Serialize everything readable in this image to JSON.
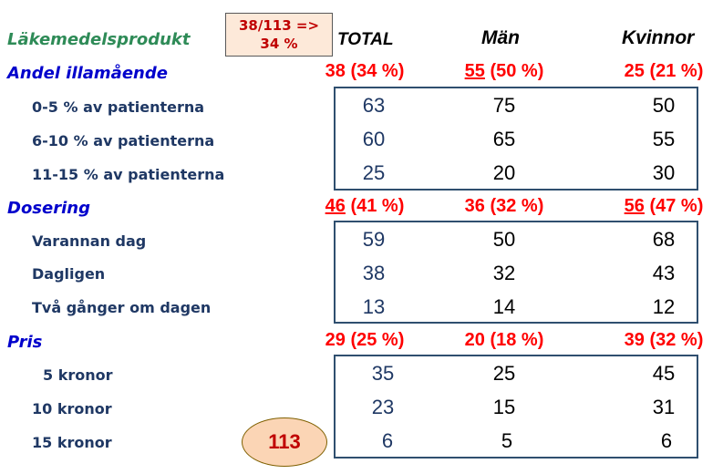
{
  "title": "Läkemedelsprodukt",
  "note": {
    "line1": "38/113 =>",
    "line2": "34 %"
  },
  "columns": {
    "total": "TOTAL",
    "men": "Män",
    "women": "Kvinnor"
  },
  "sections": [
    {
      "name": "Andel illamående",
      "summary": {
        "total": {
          "prefix": "",
          "underlined": "",
          "suffix": "38 (34 %)"
        },
        "men": {
          "prefix": "",
          "underlined": "55",
          "suffix": " (50 %)"
        },
        "women": {
          "prefix": "",
          "underlined": "",
          "suffix": "25 (21 %)"
        }
      },
      "rows": [
        {
          "label": "0-5 % av patienterna",
          "total": "63",
          "men": "75",
          "women": "50"
        },
        {
          "label": "6-10 % av patienterna",
          "total": "60",
          "men": "65",
          "women": "55"
        },
        {
          "label": "11-15 % av patienterna",
          "total": "25",
          "men": "20",
          "women": "30"
        }
      ]
    },
    {
      "name": "Dosering",
      "summary": {
        "total": {
          "prefix": "",
          "underlined": "46",
          "suffix": " (41 %)"
        },
        "men": {
          "prefix": "",
          "underlined": "",
          "suffix": "36 (32 %)"
        },
        "women": {
          "prefix": "",
          "underlined": "56",
          "suffix": " (47 %)"
        }
      },
      "rows": [
        {
          "label": "Varannan dag",
          "total": "59",
          "men": "50",
          "women": "68"
        },
        {
          "label": "Dagligen",
          "total": "38",
          "men": "32",
          "women": "43"
        },
        {
          "label": "Två gånger om dagen",
          "total": "13",
          "men": "14",
          "women": "12"
        }
      ]
    },
    {
      "name": "Pris",
      "summary": {
        "total": {
          "prefix": "",
          "underlined": "",
          "suffix": "29 (25 %)"
        },
        "men": {
          "prefix": "",
          "underlined": "",
          "suffix": "20 (18 %)"
        },
        "women": {
          "prefix": "",
          "underlined": "",
          "suffix": "39 (32 %)"
        }
      },
      "rows": [
        {
          "label": "5 kronor",
          "total": "35",
          "men": "25",
          "women": "45"
        },
        {
          "label": "10 kronor",
          "total": "23",
          "men": "15",
          "women": "31"
        },
        {
          "label": "15 kronor",
          "total": "6",
          "men": "5",
          "women": "6"
        }
      ]
    }
  ],
  "total_count": "113"
}
